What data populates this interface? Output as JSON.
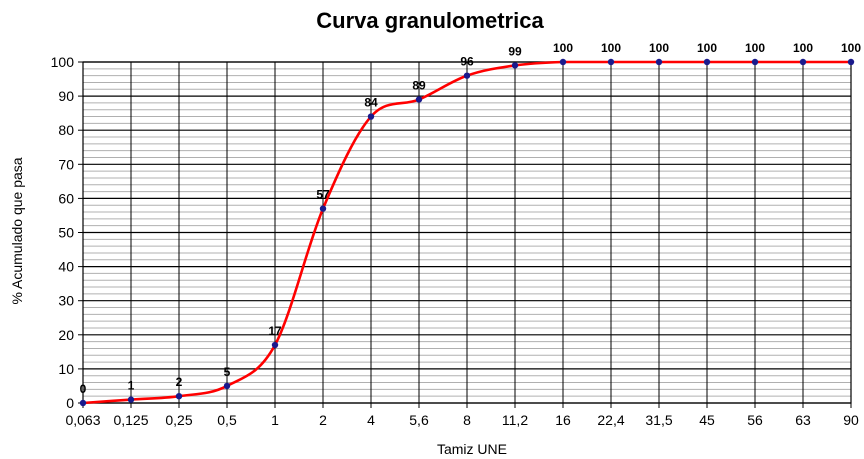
{
  "chart_data": {
    "type": "line",
    "title": "Curva granulometrica",
    "xlabel": "Tamiz UNE",
    "ylabel": "% Acumulado que pasa",
    "categories": [
      "0,063",
      "0,125",
      "0,25",
      "0,5",
      "1",
      "2",
      "4",
      "5,6",
      "8",
      "11,2",
      "16",
      "22,4",
      "31,5",
      "45",
      "56",
      "63",
      "90"
    ],
    "series": [
      {
        "values": [
          0,
          1,
          2,
          5,
          17,
          57,
          84,
          89,
          96,
          99,
          100,
          100,
          100,
          100,
          100,
          100,
          100
        ],
        "labels": [
          "0",
          "1",
          "2",
          "5",
          "17",
          "57",
          "84",
          "89",
          "96",
          "99",
          "100",
          "100",
          "100",
          "100",
          "100",
          "100",
          "100"
        ]
      }
    ],
    "ylim": [
      0,
      100
    ],
    "yticks": [
      "0",
      "10",
      "20",
      "30",
      "40",
      "50",
      "60",
      "70",
      "80",
      "90",
      "100"
    ],
    "grid": true,
    "minor_grid": true,
    "legend": "none",
    "colors": {
      "line": "#ff0000",
      "marker": "#1a1a8c",
      "grid_major": "#000000",
      "grid_minor": "#b0b0b0",
      "axis": "#000000",
      "text": "#000000",
      "background": "#ffffff"
    }
  }
}
